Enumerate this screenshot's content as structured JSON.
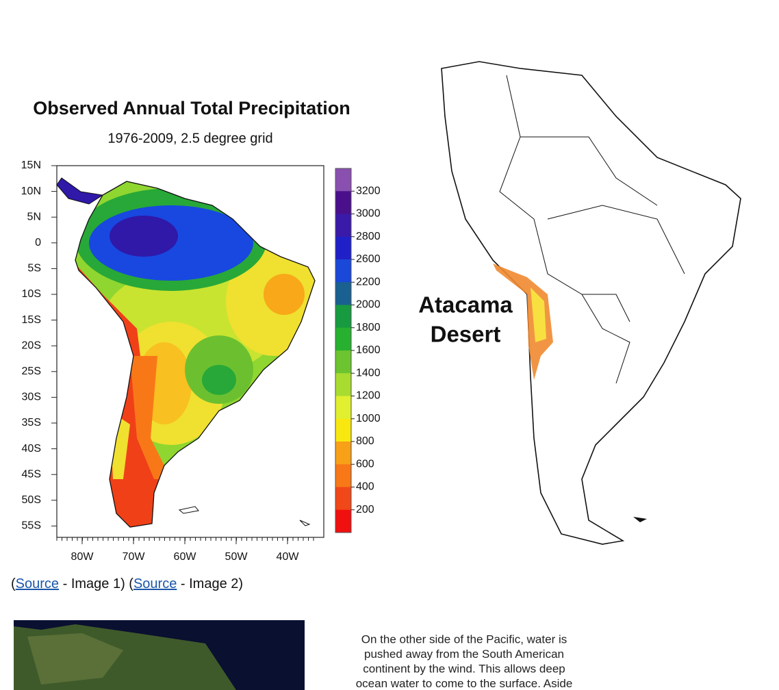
{
  "figure1": {
    "title": "Observed Annual Total Precipitation",
    "subtitle": "1976-2009, 2.5 degree grid",
    "lat_labels": [
      "15N",
      "10N",
      "5N",
      "0",
      "5S",
      "10S",
      "15S",
      "20S",
      "25S",
      "30S",
      "35S",
      "40S",
      "45S",
      "50S",
      "55S"
    ],
    "lon_labels": [
      "80W",
      "70W",
      "60W",
      "50W",
      "40W"
    ],
    "colorbar_labels": [
      "3200",
      "3000",
      "2800",
      "2600",
      "2200",
      "2000",
      "1800",
      "1600",
      "1400",
      "1200",
      "1000",
      "800",
      "600",
      "400",
      "200"
    ]
  },
  "figure2": {
    "label_lines": [
      "Atacama",
      "Desert"
    ]
  },
  "caption": {
    "parts": [
      "(",
      "Source",
      " - Image 1) (",
      "Source",
      " - Image 2)"
    ]
  },
  "figure3": {
    "text_lines": [
      "On the other side of the Pacific, water is",
      "pushed away from the South American",
      "continent by the wind. This allows deep",
      "ocean water to come to the surface. Aside"
    ]
  }
}
